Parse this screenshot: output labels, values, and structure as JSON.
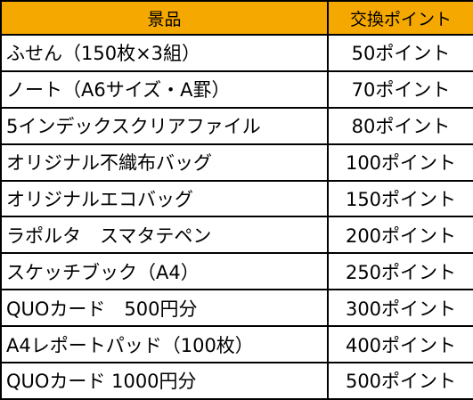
{
  "colors": {
    "header_background": "#F5A800",
    "border": "#000000",
    "text": "#000000",
    "background": "#FFFFFF"
  },
  "table": {
    "headers": {
      "item": "景品",
      "points": "交換ポイント"
    },
    "rows": [
      {
        "item": "ふせん（150枚×3組）",
        "points": "50ポイント"
      },
      {
        "item": "ノート（A6サイズ・A罫）",
        "points": "70ポイント"
      },
      {
        "item": "5インデックスクリアファイル",
        "points": "80ポイント"
      },
      {
        "item": "オリジナル不織布バッグ",
        "points": "100ポイント"
      },
      {
        "item": "オリジナルエコバッグ",
        "points": "150ポイント"
      },
      {
        "item": "ラポルタ　スマタテペン",
        "points": "200ポイント"
      },
      {
        "item": "スケッチブック（A4）",
        "points": "250ポイント"
      },
      {
        "item": "QUOカード　500円分",
        "points": "300ポイント"
      },
      {
        "item": "A4レポートパッド（100枚）",
        "points": "400ポイント"
      },
      {
        "item": "QUOカード 1000円分",
        "points": "500ポイント"
      }
    ]
  }
}
